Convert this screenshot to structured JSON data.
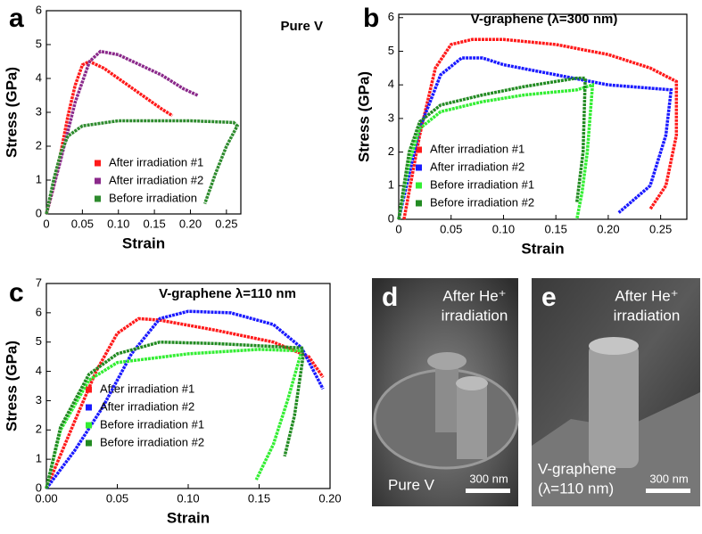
{
  "chart_data": [
    {
      "type": "line",
      "panel": "a",
      "title": "Pure V",
      "xlabel": "Strain",
      "ylabel": "Stress (GPa)",
      "xlim": [
        0,
        0.27
      ],
      "ylim": [
        0,
        6
      ],
      "xticks": [
        0,
        0.05,
        {
          "value": 0.1,
          "label": "0.10"
        },
        0.15,
        {
          "value": 0.2,
          "label": "0.20"
        },
        0.25
      ],
      "yticks": [
        0,
        1,
        2,
        3,
        4,
        5,
        6
      ],
      "series": [
        {
          "name": "After irradiation #1",
          "color": "#ff1a1a",
          "x": [
            0,
            0.01,
            0.02,
            0.03,
            0.04,
            0.05,
            0.06,
            0.08,
            0.1,
            0.12,
            0.14,
            0.16,
            0.175
          ],
          "values": [
            0,
            0.8,
            1.8,
            2.9,
            3.8,
            4.4,
            4.5,
            4.3,
            4.0,
            3.7,
            3.4,
            3.1,
            2.9
          ]
        },
        {
          "name": "After irradiation #2",
          "color": "#8b2a8b",
          "x": [
            0,
            0.02,
            0.04,
            0.06,
            0.075,
            0.1,
            0.13,
            0.16,
            0.19,
            0.21
          ],
          "values": [
            0,
            1.6,
            3.3,
            4.5,
            4.8,
            4.7,
            4.4,
            4.1,
            3.7,
            3.5
          ]
        },
        {
          "name": "Before irradiation",
          "color": "#2e8b2e",
          "x": [
            0,
            0.01,
            0.02,
            0.03,
            0.05,
            0.1,
            0.15,
            0.2,
            0.26,
            0.265,
            0.25,
            0.235,
            0.22
          ],
          "values": [
            0,
            1.0,
            1.8,
            2.3,
            2.6,
            2.75,
            2.75,
            2.75,
            2.7,
            2.6,
            2.0,
            1.2,
            0.3
          ]
        }
      ]
    },
    {
      "type": "line",
      "panel": "b",
      "title": "V-graphene (λ=300 nm)",
      "xlabel": "Strain",
      "ylabel": "Stress (GPa)",
      "xlim": [
        0,
        0.275
      ],
      "ylim": [
        0,
        6.1
      ],
      "xticks": [
        0,
        0.05,
        {
          "value": 0.1,
          "label": "0.10"
        },
        0.15,
        {
          "value": 0.2,
          "label": "0.20"
        },
        0.25
      ],
      "yticks": [
        0,
        1,
        2,
        3,
        4,
        5,
        6
      ],
      "series": [
        {
          "name": "After irradiation #1",
          "color": "#ff1a1a",
          "x": [
            0.005,
            0.02,
            0.035,
            0.05,
            0.07,
            0.1,
            0.15,
            0.2,
            0.24,
            0.265,
            0.265,
            0.255,
            0.24
          ],
          "values": [
            0,
            2.5,
            4.5,
            5.2,
            5.35,
            5.35,
            5.2,
            4.9,
            4.5,
            4.1,
            2.5,
            1.0,
            0.3
          ]
        },
        {
          "name": "After irradiation #2",
          "color": "#1a1aff",
          "x": [
            0,
            0.02,
            0.04,
            0.06,
            0.08,
            0.1,
            0.15,
            0.2,
            0.26,
            0.255,
            0.24,
            0.21
          ],
          "values": [
            0,
            2.7,
            4.3,
            4.8,
            4.8,
            4.6,
            4.3,
            4.0,
            3.85,
            2.5,
            1.0,
            0.2
          ]
        },
        {
          "name": "Before irradiation #1",
          "color": "#33ee33",
          "x": [
            0,
            0.01,
            0.02,
            0.04,
            0.08,
            0.12,
            0.17,
            0.185,
            0.18,
            0.175,
            0.17
          ],
          "values": [
            0,
            1.7,
            2.7,
            3.2,
            3.5,
            3.7,
            3.85,
            4.0,
            2.0,
            0.8,
            0
          ]
        },
        {
          "name": "Before irradiation #2",
          "color": "#228b22",
          "x": [
            0,
            0.01,
            0.02,
            0.04,
            0.08,
            0.12,
            0.17,
            0.178,
            0.176,
            0.17
          ],
          "values": [
            0,
            2.0,
            2.9,
            3.4,
            3.7,
            3.95,
            4.2,
            4.2,
            2.0,
            0.5
          ]
        }
      ]
    },
    {
      "type": "line",
      "panel": "c",
      "title": "V-graphene λ=110 nm",
      "xlabel": "Strain",
      "ylabel": "Stress (GPa)",
      "xlim": [
        0,
        0.2
      ],
      "ylim": [
        0,
        7
      ],
      "xticks": [
        {
          "value": 0,
          "label": "0.00"
        },
        0.05,
        {
          "value": 0.1,
          "label": "0.10"
        },
        0.15,
        {
          "value": 0.2,
          "label": "0.20"
        }
      ],
      "yticks": [
        0,
        1,
        2,
        3,
        4,
        5,
        6,
        7
      ],
      "series": [
        {
          "name": "After irradiation #1",
          "color": "#ff1a1a",
          "x": [
            0,
            0.02,
            0.035,
            0.05,
            0.065,
            0.08,
            0.12,
            0.16,
            0.185,
            0.195
          ],
          "values": [
            0,
            2.3,
            4.0,
            5.3,
            5.8,
            5.75,
            5.4,
            5.0,
            4.5,
            3.8
          ]
        },
        {
          "name": "After irradiation #2",
          "color": "#1a1aff",
          "x": [
            0,
            0.02,
            0.04,
            0.06,
            0.08,
            0.1,
            0.13,
            0.16,
            0.18,
            0.195
          ],
          "values": [
            0,
            1.3,
            2.8,
            4.6,
            5.8,
            6.05,
            6.0,
            5.6,
            4.8,
            3.4
          ]
        },
        {
          "name": "Before irradiation #1",
          "color": "#33ee33",
          "x": [
            0,
            0.01,
            0.03,
            0.05,
            0.1,
            0.15,
            0.18,
            0.17,
            0.16,
            0.148
          ],
          "values": [
            0,
            2.0,
            3.7,
            4.3,
            4.6,
            4.75,
            4.7,
            3.0,
            1.5,
            0.3
          ]
        },
        {
          "name": "Before irradiation #2",
          "color": "#228b22",
          "x": [
            0,
            0.01,
            0.03,
            0.05,
            0.08,
            0.12,
            0.18,
            0.181,
            0.175,
            0.168
          ],
          "values": [
            0,
            2.1,
            3.9,
            4.6,
            5.0,
            4.95,
            4.8,
            4.5,
            2.5,
            1.1
          ]
        }
      ]
    }
  ],
  "images": [
    {
      "label": "d",
      "caption": [
        "After He⁺",
        "irradiation"
      ],
      "sample": [
        "Pure V"
      ],
      "scale_bar": "300 nm"
    },
    {
      "label": "e",
      "caption": [
        "After He⁺",
        "irradiation"
      ],
      "sample": [
        "V-graphene",
        "(λ=110 nm)"
      ],
      "scale_bar": "300 nm"
    }
  ]
}
